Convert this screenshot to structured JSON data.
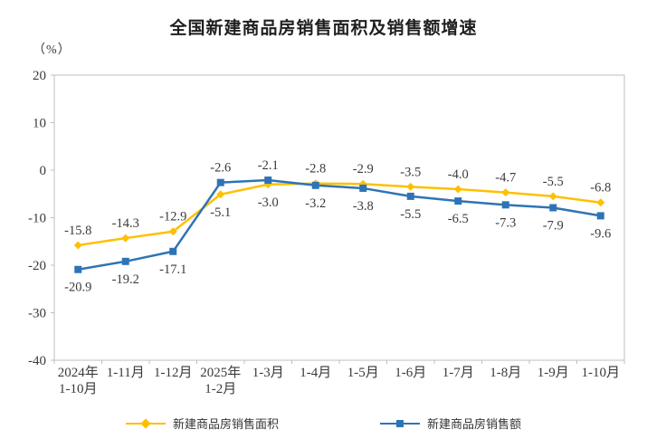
{
  "chart_data": {
    "type": "line",
    "title": "全国新建商品房销售面积及销售额增速",
    "unit": "（%）",
    "categories": [
      "2024年\n1-10月",
      "1-11月",
      "1-12月",
      "2025年\n1-2月",
      "1-3月",
      "1-4月",
      "1-5月",
      "1-6月",
      "1-7月",
      "1-8月",
      "1-9月",
      "1-10月"
    ],
    "series": [
      {
        "name": "新建商品房销售面积",
        "color": "#FFC000",
        "marker": "diamond",
        "values": [
          -15.8,
          -14.3,
          -12.9,
          -5.1,
          -3.0,
          -2.8,
          -2.9,
          -3.5,
          -4.0,
          -4.7,
          -5.5,
          -6.8
        ]
      },
      {
        "name": "新建商品房销售额",
        "color": "#2E74B5",
        "marker": "square",
        "values": [
          -20.9,
          -19.2,
          -17.1,
          -2.6,
          -2.1,
          -3.2,
          -3.8,
          -5.5,
          -6.5,
          -7.3,
          -7.9,
          -9.6
        ]
      }
    ],
    "ylim": [
      -40,
      20
    ],
    "yticks": [
      20,
      10,
      0,
      -10,
      -20,
      -30,
      -40
    ],
    "grid": false,
    "data_labels": true,
    "legend_position": "bottom",
    "axis_color": "#BFBFBF",
    "label_color": "#3a3a3a"
  }
}
